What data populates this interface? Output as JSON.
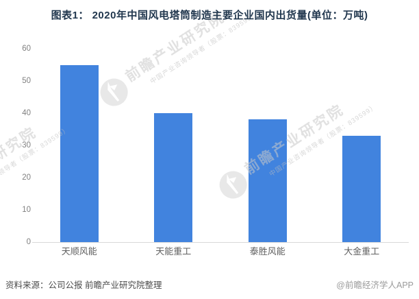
{
  "title": "图表1： 2020年中国风电塔筒制造主要企业国内出货量(单位：万吨)",
  "chart_data": {
    "type": "bar",
    "title": "图表1： 2020年中国风电塔筒制造主要企业国内出货量(单位：万吨)",
    "categories": [
      "天顺风能",
      "天能重工",
      "泰胜风能",
      "大金重工"
    ],
    "values": [
      55,
      40,
      38,
      33
    ],
    "unit": "万吨",
    "xlabel": "",
    "ylabel": "",
    "ylim": [
      0,
      60
    ],
    "yticks": [
      0,
      10,
      20,
      30,
      40,
      50,
      60
    ],
    "grid": false,
    "legend": false,
    "bar_color": "#4183DE"
  },
  "watermark": {
    "logo": "qianzhan-logo",
    "brand_big": "前瞻产业研究院",
    "brand_small": "中国产业咨询领导者（股票：839599）"
  },
  "footer": {
    "source": "资料来源：公司公报 前瞻产业研究院整理",
    "credit": "@前瞻经济学人APP"
  },
  "colors": {
    "bar": "#4183DE",
    "title": "#21374E",
    "axis_line": "#D8D8D8",
    "y_tick": "#7F7F7F",
    "x_label": "#5F5F5F",
    "source": "#4C4C4C",
    "credit": "#9B9B9B"
  }
}
